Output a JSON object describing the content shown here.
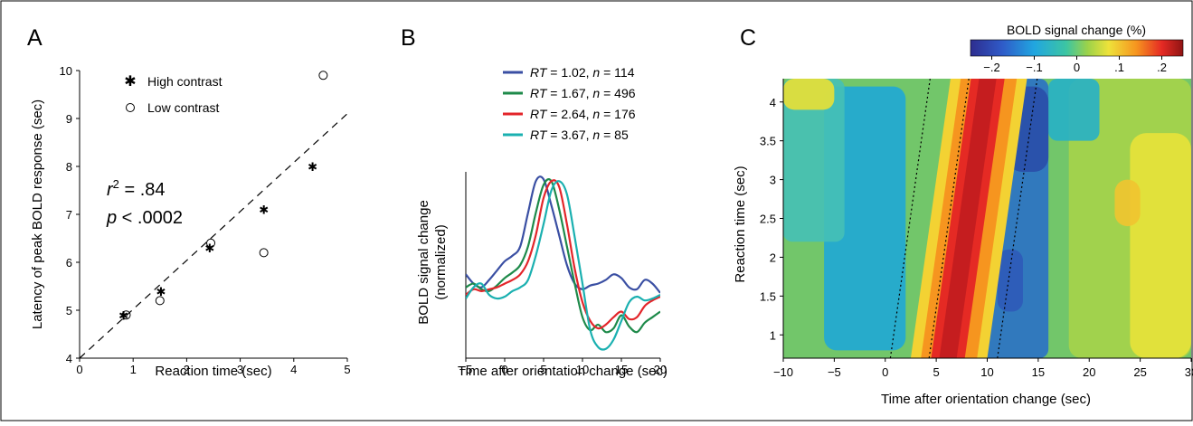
{
  "chart_data": [
    {
      "panel": "A",
      "type": "scatter",
      "xlabel": "Reaction time (sec)",
      "ylabel": "Latency of peak BOLD response (sec)",
      "xlim": [
        0,
        5
      ],
      "ylim": [
        4,
        10
      ],
      "xticks": [
        "0",
        "1",
        "2",
        "3",
        "4",
        "5"
      ],
      "yticks": [
        "4",
        "5",
        "6",
        "7",
        "8",
        "9",
        "10"
      ],
      "legend": "top-left",
      "series": [
        {
          "name": "High contrast",
          "marker": "asterisk",
          "x": [
            0.82,
            1.52,
            2.43,
            3.44,
            4.35
          ],
          "y": [
            4.9,
            5.4,
            6.3,
            7.1,
            8.0
          ]
        },
        {
          "name": "Low contrast",
          "marker": "open-circle",
          "x": [
            0.87,
            1.5,
            2.45,
            3.44,
            4.55
          ],
          "y": [
            4.9,
            5.2,
            6.4,
            6.2,
            9.9
          ]
        }
      ],
      "fit_line": {
        "x": [
          0,
          5
        ],
        "y": [
          4.0,
          9.1
        ],
        "style": "dashed"
      },
      "r2_symbol": "r",
      "r2_sup": "2",
      "r2_value": " = .84",
      "p_symbol": "p",
      "p_value": " < .0002"
    },
    {
      "panel": "B",
      "type": "line",
      "xlabel": "Time after orientation change (sec)",
      "ylabel": "BOLD signal change (normalized)",
      "ylabel_line1": "BOLD signal change",
      "ylabel_line2": "(normalized)",
      "xlim": [
        -5,
        20
      ],
      "xticks": [
        "−5",
        "0",
        "5",
        "10",
        "15",
        "20"
      ],
      "legend": "top-right",
      "series": [
        {
          "name": "RT = 1.02, n = 114",
          "rt_label": "RT",
          "rt": " = 1.02, ",
          "n_label": "n",
          "n": " = 114",
          "color": "#3a4fa3",
          "x": [
            -5,
            -4,
            -3,
            -2,
            -1,
            0,
            1,
            2,
            3,
            4,
            5,
            6,
            7,
            8,
            9,
            10,
            11,
            12,
            13,
            14,
            15,
            16,
            17,
            18,
            19,
            20
          ],
          "y": [
            0.45,
            0.4,
            0.38,
            0.42,
            0.47,
            0.52,
            0.55,
            0.6,
            0.78,
            0.95,
            0.96,
            0.82,
            0.66,
            0.5,
            0.4,
            0.37,
            0.39,
            0.4,
            0.42,
            0.45,
            0.43,
            0.38,
            0.37,
            0.42,
            0.4,
            0.35
          ]
        },
        {
          "name": "RT = 1.67, n = 496",
          "rt_label": "RT",
          "rt": " = 1.67, ",
          "n_label": "n",
          "n": " = 496",
          "color": "#1e8a4a",
          "x": [
            -5,
            -4,
            -3,
            -2,
            -1,
            0,
            1,
            2,
            3,
            4,
            5,
            6,
            7,
            8,
            9,
            10,
            11,
            12,
            13,
            14,
            15,
            16,
            17,
            18,
            19,
            20
          ],
          "y": [
            0.38,
            0.4,
            0.37,
            0.36,
            0.39,
            0.43,
            0.46,
            0.5,
            0.6,
            0.78,
            0.93,
            0.95,
            0.8,
            0.6,
            0.4,
            0.22,
            0.15,
            0.18,
            0.14,
            0.16,
            0.23,
            0.17,
            0.14,
            0.19,
            0.22,
            0.25
          ]
        },
        {
          "name": "RT = 2.64, n = 176",
          "rt_label": "RT",
          "rt": " = 2.64, ",
          "n_label": "n",
          "n": " = 176",
          "color": "#e3252a",
          "x": [
            -5,
            -4,
            -3,
            -2,
            -1,
            0,
            1,
            2,
            3,
            4,
            5,
            6,
            7,
            8,
            9,
            10,
            11,
            12,
            13,
            14,
            15,
            16,
            17,
            18,
            19,
            20
          ],
          "y": [
            0.34,
            0.37,
            0.36,
            0.37,
            0.38,
            0.4,
            0.42,
            0.45,
            0.52,
            0.66,
            0.86,
            0.95,
            0.92,
            0.72,
            0.48,
            0.3,
            0.2,
            0.16,
            0.18,
            0.22,
            0.25,
            0.21,
            0.22,
            0.28,
            0.31,
            0.33
          ]
        },
        {
          "name": "RT = 3.67, n = 85",
          "rt_label": "RT",
          "rt": " = 3.67, ",
          "n_label": "n",
          "n": " = 85",
          "color": "#1ab0b0",
          "x": [
            -5,
            -4,
            -3,
            -2,
            -1,
            0,
            1,
            2,
            3,
            4,
            5,
            6,
            7,
            8,
            9,
            10,
            11,
            12,
            13,
            14,
            15,
            16,
            17,
            18,
            19,
            20
          ],
          "y": [
            0.32,
            0.38,
            0.4,
            0.34,
            0.32,
            0.33,
            0.36,
            0.38,
            0.42,
            0.55,
            0.72,
            0.9,
            0.95,
            0.88,
            0.65,
            0.4,
            0.15,
            0.06,
            0.05,
            0.1,
            0.2,
            0.3,
            0.33,
            0.31,
            0.32,
            0.34
          ]
        }
      ]
    },
    {
      "panel": "C",
      "type": "heatmap",
      "xlabel": "Time after orientation change (sec)",
      "ylabel": "Reaction time (sec)",
      "xlim": [
        -10,
        30
      ],
      "ylim": [
        0.7,
        4.3
      ],
      "xticks": [
        "−10",
        "−5",
        "0",
        "5",
        "10",
        "15",
        "20",
        "25",
        "30"
      ],
      "yticks": [
        "1",
        "1.5",
        "2",
        "2.5",
        "3",
        "3.5",
        "4"
      ],
      "colorbar": {
        "label": "BOLD signal change (%)",
        "range": [
          -0.25,
          0.25
        ],
        "ticks": [
          "−.2",
          "−.1",
          "0",
          ".1",
          ".2"
        ]
      },
      "reference_lines": [
        {
          "style": "dotted",
          "x_at_bottom": 0.5,
          "x_at_top": 4.4
        },
        {
          "style": "dotted",
          "x_at_bottom": 4.3,
          "x_at_top": 8.2
        },
        {
          "style": "dotted",
          "x_at_bottom": 11.0,
          "x_at_top": 14.9
        }
      ]
    }
  ],
  "panel_labels": [
    "A",
    "B",
    "C"
  ]
}
